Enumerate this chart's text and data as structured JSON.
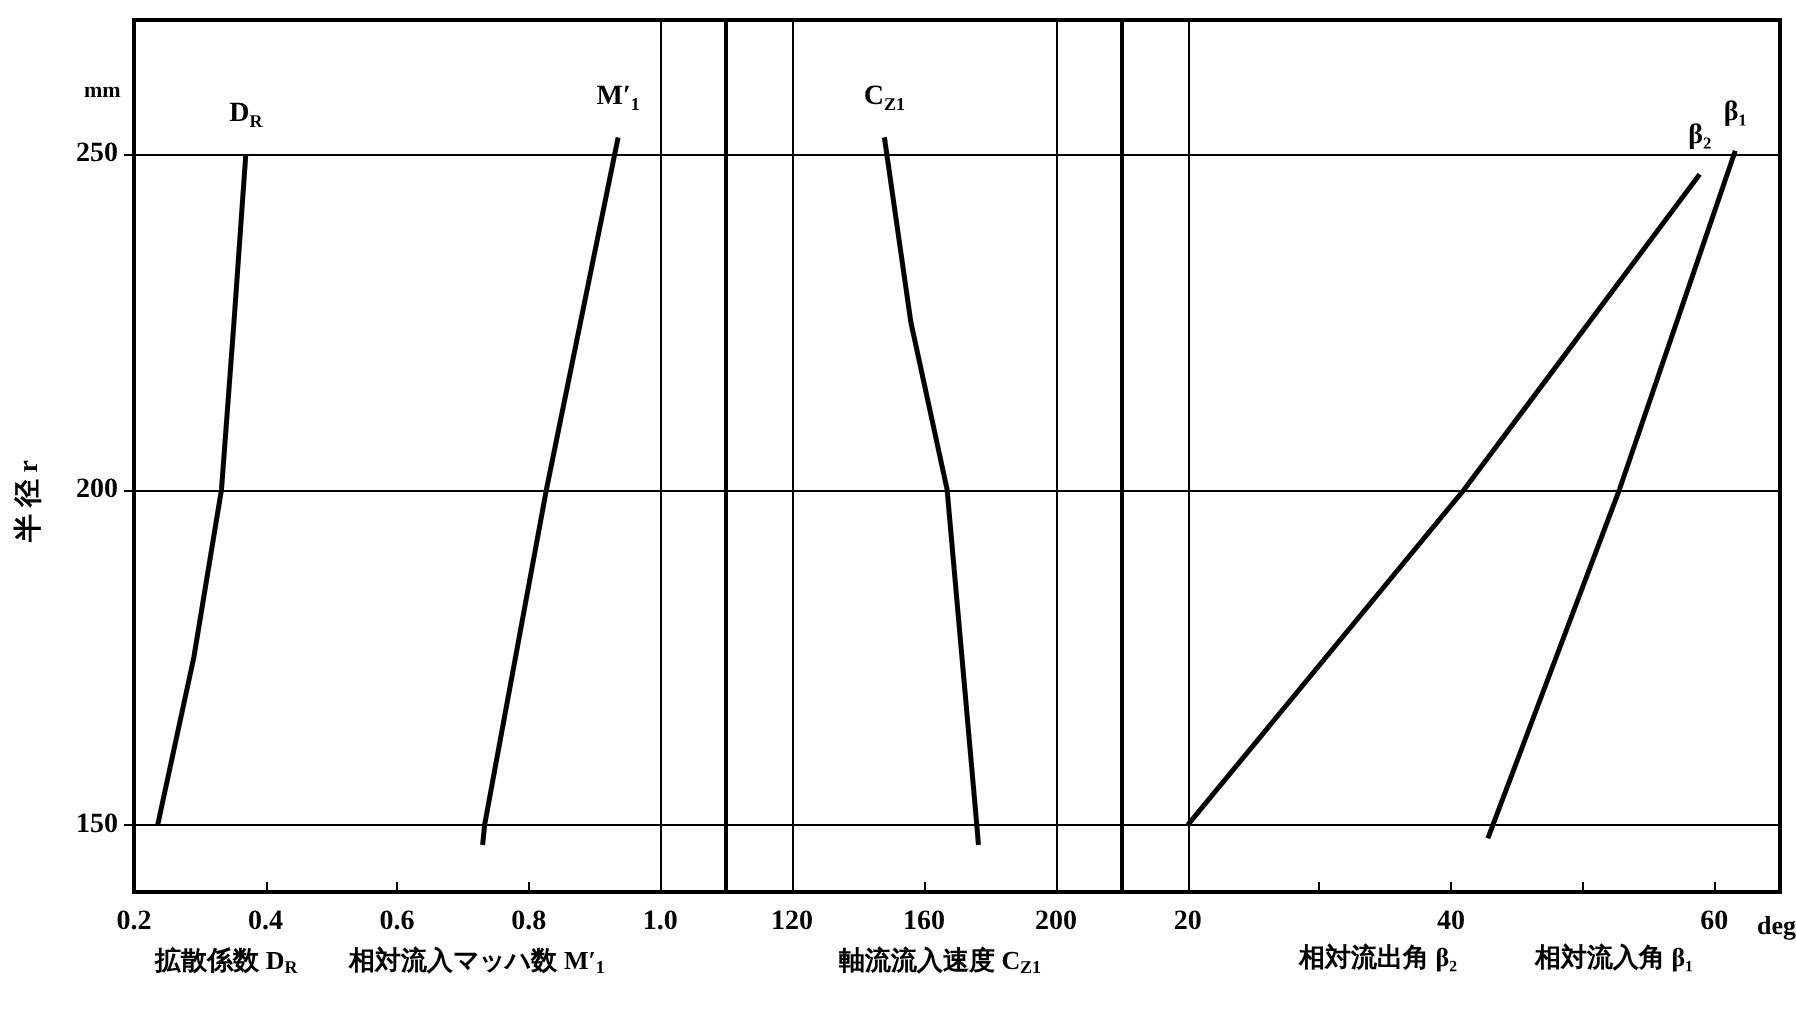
{
  "chart_data": [
    {
      "type": "line",
      "xlim": [
        0.2,
        1.1
      ],
      "xticks": [
        0.2,
        0.4,
        0.6,
        0.8,
        {
          "value": 1.0,
          "label": "1.0"
        }
      ],
      "ylim": [
        140,
        270
      ],
      "yticks": [
        150,
        200,
        250
      ],
      "ylabel": "半 径 r",
      "xlabel": "拡散係数 D$_{R}$　　相対流入マッハ数 M′$_{1}$",
      "annotations": [
        "mm"
      ],
      "grid": "y",
      "ref_lines": [
        {
          "axis": "x",
          "value": 1.0
        }
      ],
      "series": [
        {
          "name": "D$_{R}$",
          "color": "#000000",
          "x": [
            0.236,
            0.291,
            0.333,
            0.352,
            0.37
          ],
          "values": [
            150,
            175,
            200,
            225,
            250
          ]
        },
        {
          "name": "M′$_{1}$",
          "color": "#000000",
          "x": [
            0.73,
            0.733,
            0.827,
            0.936
          ],
          "values": [
            147,
            150,
            200,
            252.5
          ]
        }
      ]
    },
    {
      "type": "line",
      "xlim": [
        100,
        220
      ],
      "xticks": [
        120,
        160,
        200
      ],
      "ylim": [
        140,
        270
      ],
      "yticks": [
        150,
        200,
        250
      ],
      "tick_labels": "x",
      "xlabel": "軸流流入速度 C$_{Z1}$",
      "grid": "y",
      "ref_lines": [
        {
          "axis": "x",
          "value": 120
        },
        {
          "axis": "x",
          "value": 200
        }
      ],
      "series": [
        {
          "name": "C$_{Z1}$",
          "color": "#000000",
          "x": [
            176.5,
            176,
            171.5,
            167,
            156,
            148
          ],
          "values": [
            147,
            150,
            175,
            200,
            225,
            252.5
          ]
        }
      ]
    },
    {
      "type": "line",
      "xlim": [
        15,
        65
      ],
      "xticks": [
        20,
        {
          "value": 30,
          "label": null
        },
        40,
        {
          "value": 50,
          "label": null
        },
        60
      ],
      "ylim": [
        140,
        270
      ],
      "yticks": [
        150,
        200,
        250
      ],
      "tick_labels": "x",
      "xlabel": "相対流出角 β₂　　　相対流入角 β₁",
      "annotations": [
        "deg"
      ],
      "grid": "y",
      "ref_lines": [
        {
          "axis": "x",
          "value": 20
        }
      ],
      "series": [
        {
          "name": "β₂",
          "color": "#000000",
          "x": [
            20,
            41,
            58.9
          ],
          "values": [
            150,
            200,
            247
          ]
        },
        {
          "name": "β₁",
          "color": "#000000",
          "x": [
            42.8,
            52.8,
            61.6
          ],
          "values": [
            148,
            200,
            250.5
          ]
        }
      ]
    }
  ]
}
